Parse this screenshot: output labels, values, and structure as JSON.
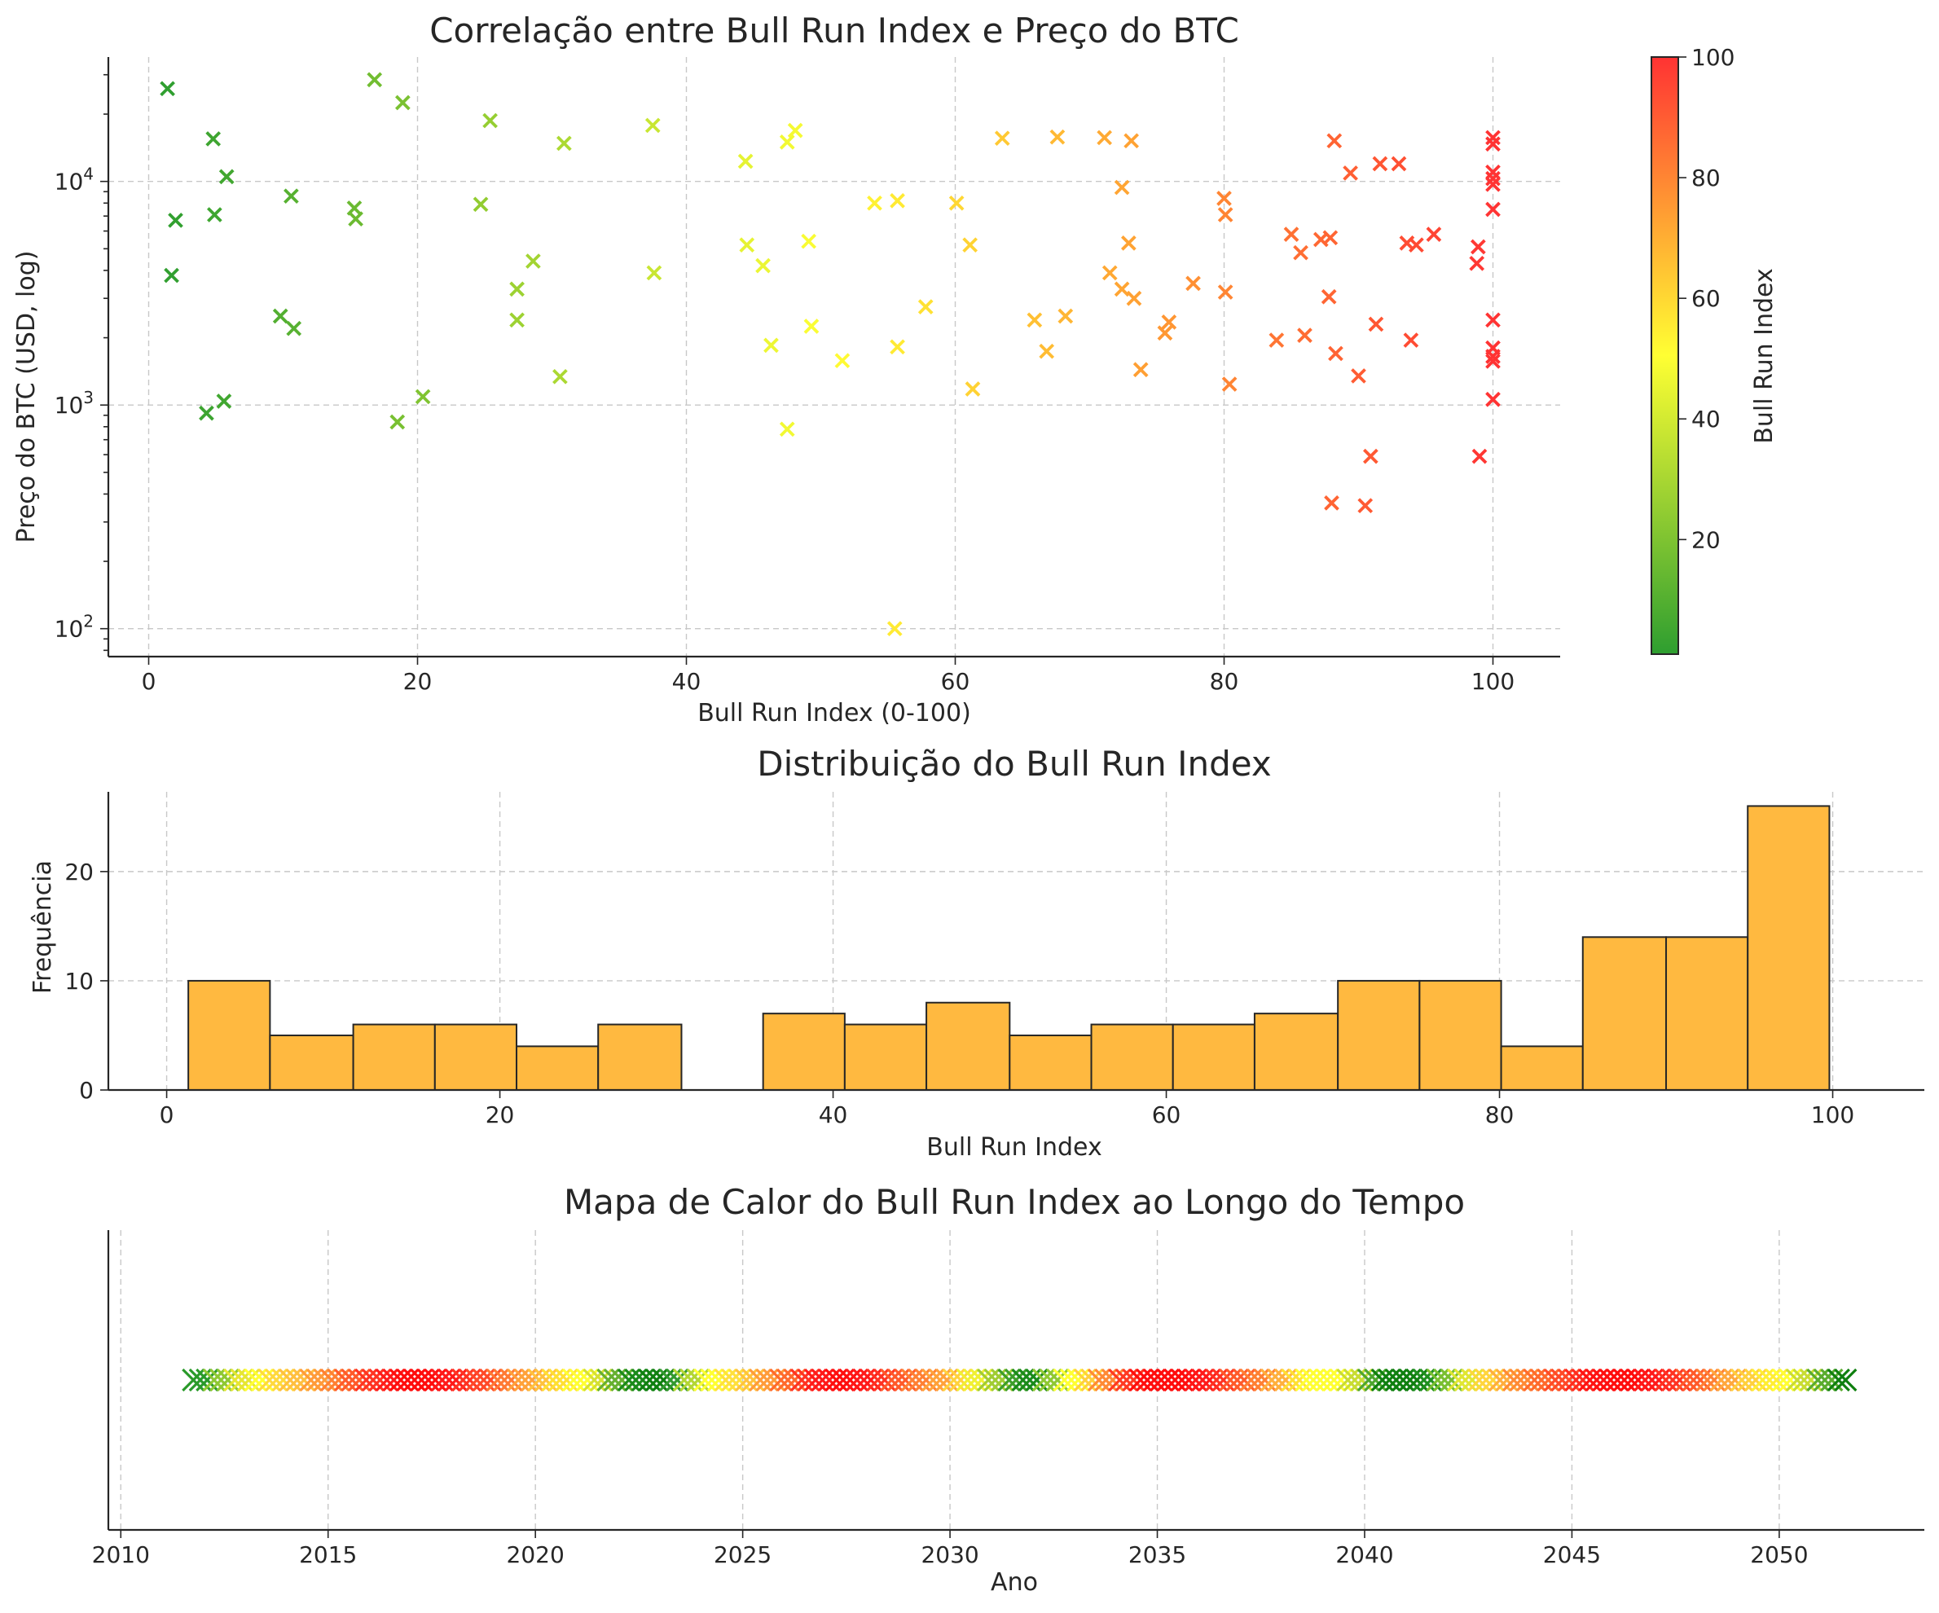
{
  "chart_data": [
    {
      "type": "scatter",
      "title": "Correlação entre Bull Run Index e Preço do BTC",
      "xlabel": "Bull Run Index (0-100)",
      "ylabel": "Preço do BTC (USD, log)",
      "xlim": [
        -3,
        105
      ],
      "ylim": [
        75,
        36000
      ],
      "yscale": "log",
      "x_ticks": [
        0,
        20,
        40,
        60,
        80,
        100
      ],
      "y_ticks": [
        {
          "value": 100,
          "base": "10",
          "exp": "2"
        },
        {
          "value": 1000,
          "base": "10",
          "exp": "3"
        },
        {
          "value": 10000,
          "base": "10",
          "exp": "4"
        }
      ],
      "grid": true,
      "marker": "x",
      "colormap": [
        "#2e9e30",
        "#ffff33",
        "#ff3333"
      ],
      "colorbar": {
        "label": "Bull Run Index",
        "range": [
          1,
          100
        ],
        "ticks": [
          20,
          40,
          60,
          80,
          100
        ]
      },
      "points": [
        [
          1.4,
          26000
        ],
        [
          1.7,
          3800
        ],
        [
          2.0,
          6700
        ],
        [
          4.3,
          920
        ],
        [
          4.8,
          15500
        ],
        [
          4.9,
          7100
        ],
        [
          5.6,
          1040
        ],
        [
          5.8,
          10500
        ],
        [
          9.8,
          2500
        ],
        [
          10.6,
          8600
        ],
        [
          10.8,
          2200
        ],
        [
          15.3,
          7600
        ],
        [
          15.4,
          6800
        ],
        [
          16.8,
          28500
        ],
        [
          18.5,
          840
        ],
        [
          18.9,
          22500
        ],
        [
          20.4,
          1090
        ],
        [
          24.7,
          7900
        ],
        [
          25.4,
          18700
        ],
        [
          27.4,
          3300
        ],
        [
          27.4,
          2400
        ],
        [
          28.6,
          4400
        ],
        [
          30.6,
          1340
        ],
        [
          30.9,
          14800
        ],
        [
          37.5,
          17800
        ],
        [
          37.6,
          3900
        ],
        [
          44.4,
          12300
        ],
        [
          44.5,
          5200
        ],
        [
          45.7,
          4200
        ],
        [
          46.3,
          1850
        ],
        [
          47.5,
          15000
        ],
        [
          47.5,
          780
        ],
        [
          48.1,
          16900
        ],
        [
          49.1,
          5400
        ],
        [
          49.3,
          2250
        ],
        [
          51.6,
          1580
        ],
        [
          54.0,
          8000
        ],
        [
          55.5,
          100
        ],
        [
          55.7,
          8200
        ],
        [
          55.7,
          1820
        ],
        [
          57.8,
          2750
        ],
        [
          60.1,
          8000
        ],
        [
          61.1,
          5200
        ],
        [
          61.3,
          1180
        ],
        [
          63.5,
          15600
        ],
        [
          65.9,
          2400
        ],
        [
          66.8,
          1740
        ],
        [
          67.6,
          15800
        ],
        [
          68.2,
          2500
        ],
        [
          71.1,
          15700
        ],
        [
          71.5,
          3900
        ],
        [
          72.4,
          9400
        ],
        [
          72.4,
          3300
        ],
        [
          72.9,
          5300
        ],
        [
          73.1,
          15200
        ],
        [
          73.3,
          3000
        ],
        [
          73.8,
          1440
        ],
        [
          75.6,
          2100
        ],
        [
          75.9,
          2350
        ],
        [
          77.7,
          3500
        ],
        [
          80.0,
          8400
        ],
        [
          80.1,
          7100
        ],
        [
          80.1,
          3200
        ],
        [
          80.4,
          1240
        ],
        [
          83.9,
          1950
        ],
        [
          85.0,
          5800
        ],
        [
          85.7,
          4800
        ],
        [
          86.0,
          2050
        ],
        [
          87.2,
          5500
        ],
        [
          87.8,
          3050
        ],
        [
          87.9,
          5600
        ],
        [
          88.0,
          365
        ],
        [
          88.2,
          15200
        ],
        [
          88.3,
          1700
        ],
        [
          89.4,
          10900
        ],
        [
          90.0,
          1350
        ],
        [
          90.5,
          355
        ],
        [
          90.9,
          590
        ],
        [
          91.3,
          2300
        ],
        [
          91.6,
          12000
        ],
        [
          93.0,
          12000
        ],
        [
          93.6,
          5300
        ],
        [
          93.9,
          1950
        ],
        [
          94.3,
          5200
        ],
        [
          95.6,
          5800
        ],
        [
          98.8,
          4300
        ],
        [
          98.9,
          5100
        ],
        [
          99.0,
          590
        ],
        [
          100,
          15700
        ],
        [
          100,
          14700
        ],
        [
          100,
          11000
        ],
        [
          100,
          10300
        ],
        [
          100,
          9700
        ],
        [
          100,
          7500
        ],
        [
          100,
          2400
        ],
        [
          100,
          1800
        ],
        [
          100,
          1650
        ],
        [
          100,
          1570
        ],
        [
          100,
          1060
        ]
      ]
    },
    {
      "type": "bar",
      "title": "Distribuição do Bull Run Index",
      "xlabel": "Bull Run Index",
      "ylabel": "Frequência",
      "xlim": [
        -3.5,
        105.5
      ],
      "ylim": [
        0,
        27.3
      ],
      "x_ticks": [
        0,
        20,
        40,
        60,
        80,
        100
      ],
      "y_ticks": [
        0,
        10,
        20
      ],
      "grid": true,
      "bar_color": "#ffb940",
      "bin_edges": [
        1.3,
        6.2,
        11.2,
        16.1,
        21.0,
        25.9,
        30.9,
        35.8,
        40.7,
        45.6,
        50.6,
        55.5,
        60.4,
        65.3,
        70.3,
        75.2,
        80.1,
        85.0,
        90.0,
        94.9,
        99.8
      ],
      "values": [
        10,
        5,
        6,
        6,
        4,
        6,
        0,
        7,
        6,
        8,
        5,
        6,
        6,
        7,
        10,
        10,
        4,
        14,
        14,
        26
      ]
    },
    {
      "type": "scatter",
      "title": "Mapa de Calor do Bull Run Index ao Longo do Tempo",
      "xlabel": "Ano",
      "ylabel": "",
      "xlim": [
        2009.7,
        2053.5
      ],
      "x_ticks": [
        2010,
        2015,
        2020,
        2025,
        2030,
        2035,
        2040,
        2045,
        2050
      ],
      "grid": true,
      "marker": "x",
      "x_start": 2011.75,
      "x_end": 2051.6,
      "color_sequence": [
        "#2a9a2a",
        "#8fc832",
        "#e6e632",
        "#ffff33",
        "#ffd93d",
        "#ffbf40",
        "#ff9b3a",
        "#ff8033",
        "#ff5a2a",
        "#ff3322",
        "#ff1a1a",
        "#ff0d0d",
        "#ff0d0d",
        "#ff1a1a",
        "#ff3322",
        "#ff4a28",
        "#ff7a33",
        "#ffa23a",
        "#ffc23d",
        "#ffe033",
        "#ffff33",
        "#d4e033",
        "#66b030",
        "#1a8a1a",
        "#0f7f0f",
        "#339930",
        "#b3d633",
        "#ffff33",
        "#ffe03d",
        "#ffc23d",
        "#ff9b3a",
        "#ff6a2d",
        "#ff3322",
        "#ff1a1a",
        "#ff0d0d",
        "#ff1a1a",
        "#ff3322",
        "#ff5a2a",
        "#ff8033",
        "#ffa23a",
        "#ffd23d",
        "#f0f033",
        "#a0cc33",
        "#3d9e2a",
        "#1a8a1a",
        "#8fc832",
        "#ffff33",
        "#ffcf3d",
        "#ff8a35",
        "#ff3a22",
        "#ff0d0d",
        "#ff0d0d",
        "#ff0d0d",
        "#ff1a1a",
        "#ff3322",
        "#ff5a2a",
        "#ff8033",
        "#ffb03d",
        "#ffe033",
        "#ffff33",
        "#ffff33",
        "#c8dc33",
        "#4da62e",
        "#0f7f0f",
        "#0f7f0f",
        "#1f8f1f",
        "#7abf30",
        "#e0e633",
        "#ffd53d",
        "#ffad3d",
        "#ff8a35",
        "#ff6a2d",
        "#ff4a28",
        "#ff2a1f",
        "#ff1212",
        "#ff0d0d",
        "#ff0d0d",
        "#ff1a1a",
        "#ff3322",
        "#ff5a2a",
        "#ff8033",
        "#ffa83d",
        "#ffd03d",
        "#ffee33",
        "#ffff33",
        "#c8dc33",
        "#5aac2e",
        "#0f7f0f"
      ]
    }
  ]
}
